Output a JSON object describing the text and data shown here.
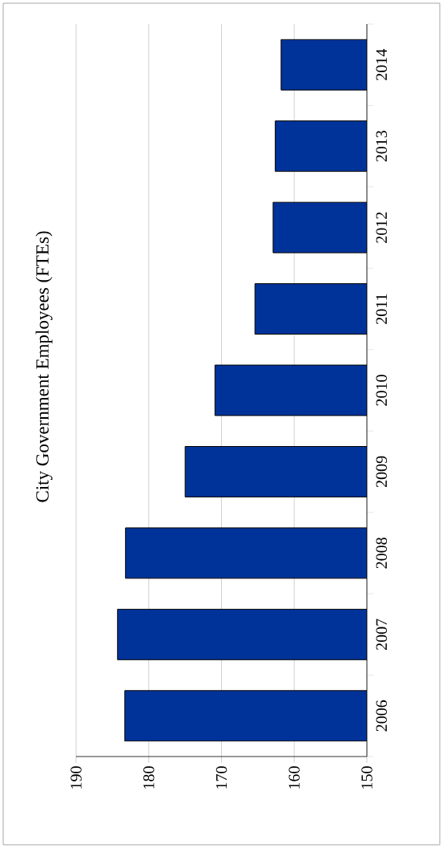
{
  "chart_data": {
    "type": "bar",
    "orientation": "horizontal",
    "title": "City Government Employees (FTEs)",
    "categories": [
      "2014",
      "2013",
      "2012",
      "2011",
      "2010",
      "2009",
      "2008",
      "2007",
      "2006"
    ],
    "values": [
      161.8,
      162.6,
      162.9,
      165.4,
      170.9,
      175.0,
      183.2,
      184.3,
      183.3
    ],
    "color": "#003399",
    "xlim": [
      190,
      150
    ],
    "xticks": [
      190,
      180,
      170,
      160,
      150
    ],
    "grid": "x"
  }
}
